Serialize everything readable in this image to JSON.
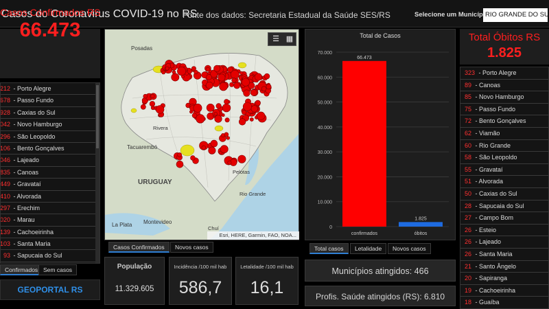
{
  "header": {
    "title": "Casos do Coronavirus COVID-19 no RS",
    "source": "Fonte dos dados: Secretaria Estadual da Saúde SES/RS",
    "municipality_label": "Selecione um Município",
    "municipality_value": "RIO GRANDE DO SUL"
  },
  "left_kpi": {
    "title": "Casos Confirmados RS",
    "value": "66.473"
  },
  "left_list": [
    {
      "n": "212",
      "name": "Porto Alegre"
    },
    {
      "n": "678",
      "name": "Passo Fundo"
    },
    {
      "n": "928",
      "name": "Caxias do Sul"
    },
    {
      "n": "042",
      "name": "Novo Hamburgo"
    },
    {
      "n": "296",
      "name": "São Leopoldo"
    },
    {
      "n": "106",
      "name": "Bento Gonçalves"
    },
    {
      "n": "046",
      "name": "Lajeado"
    },
    {
      "n": "835",
      "name": "Canoas"
    },
    {
      "n": "449",
      "name": "Gravataí"
    },
    {
      "n": "410",
      "name": "Alvorada"
    },
    {
      "n": "297",
      "name": "Erechim"
    },
    {
      "n": "020",
      "name": "Marau"
    },
    {
      "n": "139",
      "name": "Cachoeirinha"
    },
    {
      "n": "103",
      "name": "Santa Maria"
    },
    {
      "n": "93",
      "name": "Sapucaia do Sul"
    }
  ],
  "left_tabs": [
    "Confirmados",
    "Sem casos"
  ],
  "geoportal": "GEOPORTAL RS",
  "map": {
    "labels": [
      "Posadas",
      "Tacuarembó",
      "URUGUAY",
      "Montevideo",
      "La Plata",
      "Rivera",
      "Rio Grande",
      "Pelotas",
      "Chuí"
    ],
    "attribution": "Esri, HERE, Garmin, FAO, NOA...",
    "colors": {
      "land": "#d4dcc8",
      "water": "#aed3e6",
      "rs": "#e4e6df",
      "marker": "#e30000",
      "marker_edge": "#7a0000",
      "yellow": "#e6e020"
    }
  },
  "map_tabs": [
    "Casos Confirmados",
    "Novos casos"
  ],
  "stats": [
    {
      "label": "População",
      "value": "11.329.605"
    },
    {
      "label": "Incidência /100 mil hab",
      "value": "586,7"
    },
    {
      "label": "Letalidade /100 mil hab",
      "value": "16,1"
    }
  ],
  "chart_data": {
    "type": "bar",
    "title": "Total de Casos",
    "categories": [
      "confirmados",
      "óbitos"
    ],
    "values": [
      66473,
      1825
    ],
    "value_labels": [
      "66.473",
      "1.825"
    ],
    "colors": [
      "#ff0000",
      "#1e6be0"
    ],
    "ylim": [
      0,
      70000
    ],
    "yticks": [
      "0",
      "10.000",
      "20.000",
      "30.000",
      "40.000",
      "50.000",
      "60.000",
      "70.000"
    ],
    "ytick_values": [
      0,
      10000,
      20000,
      30000,
      40000,
      50000,
      60000,
      70000
    ],
    "grid": true
  },
  "chart_tabs": [
    "Total casos",
    "Letalidade",
    "Novos casos"
  ],
  "info": [
    "Municípios atingidos: 466",
    "Profis. Saúde atingidos (RS): 6.810"
  ],
  "right_kpi": {
    "title": "Total Óbitos RS",
    "value": "1.825"
  },
  "right_list": [
    {
      "n": "323",
      "name": "Porto Alegre"
    },
    {
      "n": "89",
      "name": "Canoas"
    },
    {
      "n": "85",
      "name": "Novo Hamburgo"
    },
    {
      "n": "75",
      "name": "Passo Fundo"
    },
    {
      "n": "72",
      "name": "Bento Gonçalves"
    },
    {
      "n": "62",
      "name": "Viamão"
    },
    {
      "n": "60",
      "name": "Rio Grande"
    },
    {
      "n": "58",
      "name": "São Leopoldo"
    },
    {
      "n": "55",
      "name": "Gravataí"
    },
    {
      "n": "51",
      "name": "Alvorada"
    },
    {
      "n": "50",
      "name": "Caxias do Sul"
    },
    {
      "n": "28",
      "name": "Sapucaia do Sul"
    },
    {
      "n": "27",
      "name": "Campo Bom"
    },
    {
      "n": "26",
      "name": "Esteio"
    },
    {
      "n": "26",
      "name": "Lajeado"
    },
    {
      "n": "26",
      "name": "Santa Maria"
    },
    {
      "n": "21",
      "name": "Santo Ângelo"
    },
    {
      "n": "20",
      "name": "Sapiranga"
    },
    {
      "n": "19",
      "name": "Cachoeirinha"
    },
    {
      "n": "18",
      "name": "Guaíba"
    }
  ]
}
